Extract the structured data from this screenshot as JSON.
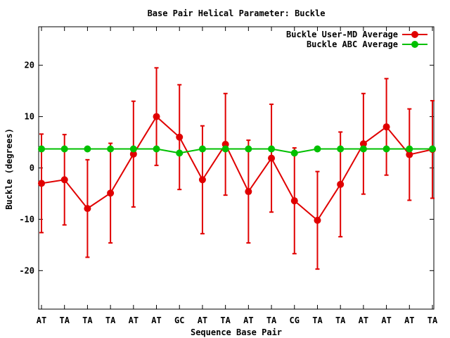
{
  "chart_data": {
    "type": "line",
    "title": "Base Pair Helical Parameter: Buckle",
    "xlabel": "Sequence Base Pair",
    "ylabel": "Buckle (degrees)",
    "ylim": [
      -27.5,
      27.5
    ],
    "yticks": [
      -20,
      -10,
      0,
      10,
      20
    ],
    "grid": false,
    "legend_position": "top-right",
    "categories": [
      "AT",
      "TA",
      "TA",
      "TA",
      "AT",
      "AT",
      "GC",
      "AT",
      "TA",
      "AT",
      "TA",
      "CG",
      "TA",
      "TA",
      "AT",
      "AT",
      "AT",
      "TA"
    ],
    "series": [
      {
        "name": "Buckle User-MD Average",
        "color": "#e00000",
        "values": [
          -3.0,
          -2.3,
          -7.9,
          -4.9,
          2.7,
          10.0,
          6.0,
          -2.3,
          4.6,
          -4.6,
          1.9,
          -6.4,
          -10.2,
          -3.2,
          4.7,
          8.0,
          2.6,
          3.6
        ],
        "error": [
          9.6,
          8.8,
          9.5,
          9.7,
          10.3,
          9.5,
          10.2,
          10.5,
          9.9,
          10.0,
          10.5,
          10.3,
          9.5,
          10.2,
          9.8,
          9.4,
          8.9,
          9.5
        ]
      },
      {
        "name": "Buckle ABC Average",
        "color": "#00c000",
        "values": [
          3.7,
          3.7,
          3.7,
          3.7,
          3.7,
          3.7,
          2.9,
          3.7,
          3.7,
          3.7,
          3.7,
          2.9,
          3.7,
          3.7,
          3.7,
          3.7,
          3.7,
          3.7
        ]
      }
    ]
  }
}
